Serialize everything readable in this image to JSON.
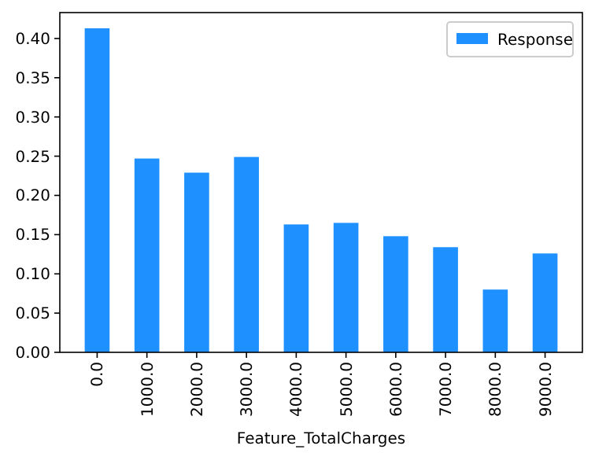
{
  "chart_data": {
    "type": "bar",
    "xlabel": "Feature_TotalCharges",
    "categories": [
      "0.0",
      "1000.0",
      "2000.0",
      "3000.0",
      "4000.0",
      "5000.0",
      "6000.0",
      "7000.0",
      "8000.0",
      "9000.0"
    ],
    "series": [
      {
        "name": "Response",
        "color": "#1e90ff",
        "values": [
          0.413,
          0.247,
          0.229,
          0.249,
          0.163,
          0.165,
          0.148,
          0.134,
          0.08,
          0.126
        ]
      }
    ],
    "ylim": [
      0,
      0.433
    ],
    "yticks": [
      {
        "value": 0,
        "label": "0.00"
      },
      {
        "value": 0.05,
        "label": "0.05"
      },
      {
        "value": 0.1,
        "label": "0.10"
      },
      {
        "value": 0.15,
        "label": "0.15"
      },
      {
        "value": 0.2,
        "label": "0.20"
      },
      {
        "value": 0.25,
        "label": "0.25"
      },
      {
        "value": 0.3,
        "label": "0.30"
      },
      {
        "value": 0.35,
        "label": "0.35"
      },
      {
        "value": 0.4,
        "label": "0.40"
      }
    ],
    "legend": "top right"
  }
}
